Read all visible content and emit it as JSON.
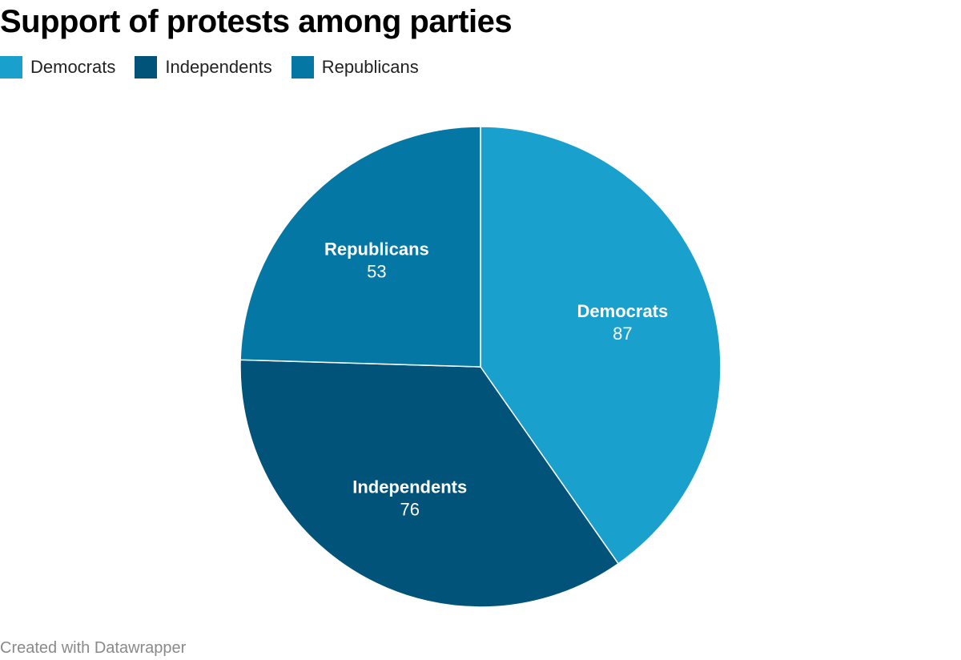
{
  "title": "Support of protests among parties",
  "footer": "Created with Datawrapper",
  "colors": {
    "Democrats": "#19a0cc",
    "Independents": "#02537a",
    "Republicans": "#0477a4"
  },
  "legend": [
    {
      "label": "Democrats",
      "color": "#19a0cc"
    },
    {
      "label": "Independents",
      "color": "#02537a"
    },
    {
      "label": "Republicans",
      "color": "#0477a4"
    }
  ],
  "chart_data": {
    "type": "pie",
    "title": "Support of protests among parties",
    "categories": [
      "Democrats",
      "Independents",
      "Republicans"
    ],
    "values": [
      87,
      76,
      53
    ],
    "legend_position": "top-left"
  }
}
